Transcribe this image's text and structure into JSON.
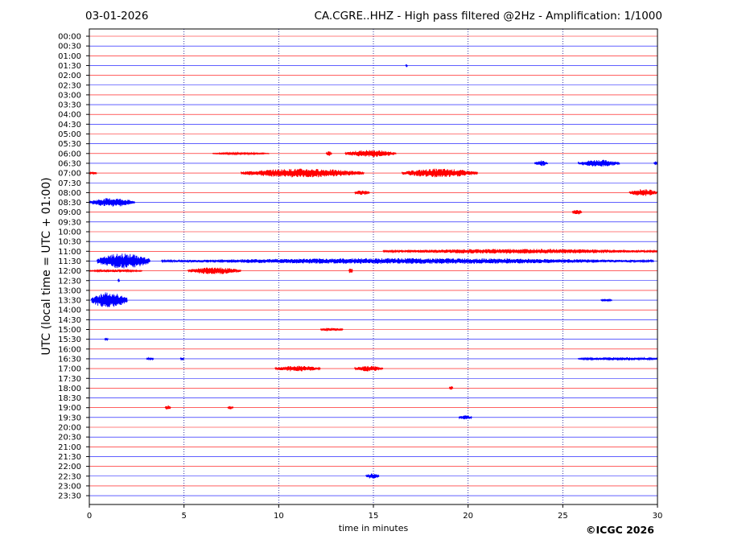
{
  "header": {
    "date": "03-01-2026",
    "title": "CA.CGRE..HHZ - High pass filtered @2Hz - Amplification: 1/1000"
  },
  "footer": {
    "copyright": "©ICGC 2026"
  },
  "colors": {
    "red_trace": "#ff0000",
    "blue_trace": "#0000ff",
    "grid": "#00008b",
    "frame": "#000000"
  },
  "chart_data": {
    "type": "line",
    "subtype": "helicorder",
    "xlabel": "time in minutes",
    "ylabel": "UTC (local time = UTC + 01:00)",
    "xlim": [
      0,
      30
    ],
    "xticks": [
      0,
      5,
      10,
      15,
      20,
      25,
      30
    ],
    "vertical_grid": [
      5,
      10,
      15,
      20,
      25
    ],
    "grid": "dotted",
    "trace_colors": [
      "red",
      "blue"
    ],
    "rows": [
      "00:00",
      "00:30",
      "01:00",
      "01:30",
      "02:00",
      "02:30",
      "03:00",
      "03:30",
      "04:00",
      "04:30",
      "05:00",
      "05:30",
      "06:00",
      "06:30",
      "07:00",
      "07:30",
      "08:00",
      "08:30",
      "09:00",
      "09:30",
      "10:00",
      "10:30",
      "11:00",
      "11:30",
      "12:00",
      "12:30",
      "13:00",
      "13:30",
      "14:00",
      "14:30",
      "15:00",
      "15:30",
      "16:00",
      "16:30",
      "17:00",
      "17:30",
      "18:00",
      "18:30",
      "19:00",
      "19:30",
      "20:00",
      "20:30",
      "21:00",
      "21:30",
      "22:00",
      "22:30",
      "23:00",
      "23:30"
    ],
    "events": [
      {
        "row": "01:30",
        "start": 16.7,
        "end": 16.8,
        "amp": 0.25
      },
      {
        "row": "06:00",
        "start": 6.5,
        "end": 9.5,
        "amp": 0.12
      },
      {
        "row": "06:00",
        "start": 12.5,
        "end": 12.8,
        "amp": 0.3
      },
      {
        "row": "06:00",
        "start": 13.5,
        "end": 16.2,
        "amp": 0.45
      },
      {
        "row": "06:30",
        "start": 23.5,
        "end": 24.2,
        "amp": 0.35
      },
      {
        "row": "06:30",
        "start": 25.8,
        "end": 28.0,
        "amp": 0.45
      },
      {
        "row": "06:30",
        "start": 29.8,
        "end": 30.0,
        "amp": 0.3
      },
      {
        "row": "07:00",
        "start": 0.0,
        "end": 0.4,
        "amp": 0.15
      },
      {
        "row": "07:00",
        "start": 8.0,
        "end": 14.5,
        "amp": 0.55
      },
      {
        "row": "07:00",
        "start": 16.5,
        "end": 20.5,
        "amp": 0.55
      },
      {
        "row": "08:00",
        "start": 14.0,
        "end": 14.8,
        "amp": 0.3
      },
      {
        "row": "08:00",
        "start": 28.5,
        "end": 30.0,
        "amp": 0.45
      },
      {
        "row": "08:30",
        "start": 0.0,
        "end": 2.4,
        "amp": 0.55
      },
      {
        "row": "09:00",
        "start": 25.5,
        "end": 26.0,
        "amp": 0.35
      },
      {
        "row": "11:00",
        "start": 15.5,
        "end": 30.0,
        "amp": 0.3
      },
      {
        "row": "11:30",
        "start": 0.4,
        "end": 3.2,
        "amp": 0.95
      },
      {
        "row": "11:30",
        "start": 3.8,
        "end": 29.8,
        "amp": 0.35
      },
      {
        "row": "12:00",
        "start": 0.0,
        "end": 2.8,
        "amp": 0.15
      },
      {
        "row": "12:00",
        "start": 5.2,
        "end": 8.0,
        "amp": 0.45
      },
      {
        "row": "12:00",
        "start": 13.7,
        "end": 13.9,
        "amp": 0.45
      },
      {
        "row": "12:30",
        "start": 1.5,
        "end": 1.6,
        "amp": 0.25
      },
      {
        "row": "13:30",
        "start": 0.1,
        "end": 2.0,
        "amp": 1.0
      },
      {
        "row": "13:30",
        "start": 27.0,
        "end": 27.6,
        "amp": 0.15
      },
      {
        "row": "15:00",
        "start": 12.2,
        "end": 13.4,
        "amp": 0.2
      },
      {
        "row": "15:30",
        "start": 0.8,
        "end": 1.0,
        "amp": 0.15
      },
      {
        "row": "16:30",
        "start": 3.0,
        "end": 3.4,
        "amp": 0.15
      },
      {
        "row": "16:30",
        "start": 4.8,
        "end": 5.0,
        "amp": 0.2
      },
      {
        "row": "16:30",
        "start": 25.8,
        "end": 30.0,
        "amp": 0.2
      },
      {
        "row": "17:00",
        "start": 9.8,
        "end": 12.2,
        "amp": 0.35
      },
      {
        "row": "17:00",
        "start": 14.0,
        "end": 15.5,
        "amp": 0.35
      },
      {
        "row": "18:00",
        "start": 19.0,
        "end": 19.2,
        "amp": 0.3
      },
      {
        "row": "19:00",
        "start": 4.0,
        "end": 4.3,
        "amp": 0.3
      },
      {
        "row": "19:00",
        "start": 7.3,
        "end": 7.6,
        "amp": 0.2
      },
      {
        "row": "19:30",
        "start": 19.5,
        "end": 20.2,
        "amp": 0.25
      },
      {
        "row": "22:30",
        "start": 14.6,
        "end": 15.3,
        "amp": 0.35
      }
    ]
  }
}
